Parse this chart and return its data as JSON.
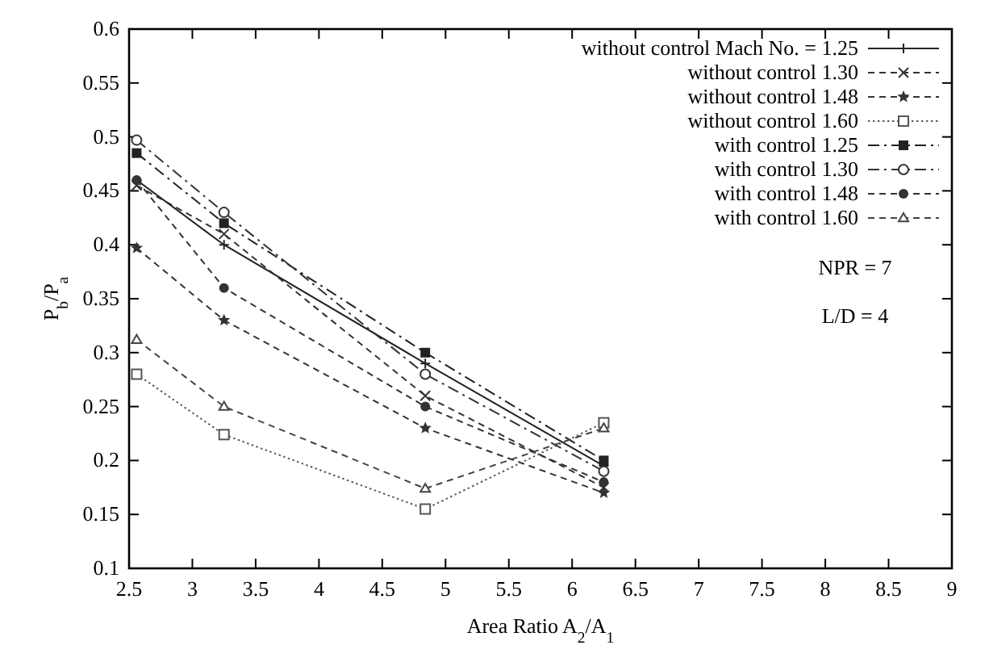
{
  "chart_data": {
    "type": "line",
    "xlabel": "Area Ratio A$_{2}$/A$_{1}$",
    "ylabel": "P$_{b}$/P$_{a}$",
    "x": [
      2.56,
      3.25,
      4.84,
      6.25
    ],
    "xlim": [
      2.5,
      9
    ],
    "xticks": [
      2.5,
      3,
      3.5,
      4,
      4.5,
      5,
      5.5,
      6,
      6.5,
      7,
      7.5,
      8,
      8.5,
      9
    ],
    "ylim": [
      0.1,
      0.6
    ],
    "yticks": [
      0.1,
      0.15,
      0.2,
      0.25,
      0.3,
      0.35,
      0.4,
      0.45,
      0.5,
      0.55,
      0.6
    ],
    "grid": false,
    "legend": "top right",
    "annotations": [
      "NPR = 7",
      "L/D = 4"
    ],
    "series": [
      {
        "name": "without control Mach No. = 1.25",
        "color": "#222222",
        "line_style": "solid",
        "marker": "plus",
        "values": [
          0.46,
          0.4,
          0.29,
          0.195
        ]
      },
      {
        "name": "without control 1.30",
        "color": "#333333",
        "line_style": "dashed",
        "marker": "x",
        "values": [
          0.455,
          0.41,
          0.26,
          0.175
        ]
      },
      {
        "name": "without control 1.48",
        "color": "#333333",
        "line_style": "dashed",
        "marker": "star",
        "values": [
          0.397,
          0.33,
          0.23,
          0.17
        ]
      },
      {
        "name": "without control 1.60",
        "color": "#555555",
        "line_style": "dotted",
        "marker": "square-open",
        "values": [
          0.28,
          0.224,
          0.155,
          0.235
        ]
      },
      {
        "name": "with control 1.25",
        "color": "#222222",
        "line_style": "dashdot",
        "marker": "square",
        "values": [
          0.485,
          0.42,
          0.3,
          0.2
        ]
      },
      {
        "name": "with control 1.30",
        "color": "#333333",
        "line_style": "dashdot",
        "marker": "circle-open",
        "values": [
          0.497,
          0.43,
          0.28,
          0.19
        ]
      },
      {
        "name": "with control 1.48",
        "color": "#333333",
        "line_style": "dashed",
        "marker": "circle",
        "values": [
          0.46,
          0.36,
          0.25,
          0.18
        ]
      },
      {
        "name": "with control 1.60",
        "color": "#444444",
        "line_style": "dashed",
        "marker": "triangle-open",
        "values": [
          0.312,
          0.25,
          0.174,
          0.23
        ]
      }
    ]
  }
}
